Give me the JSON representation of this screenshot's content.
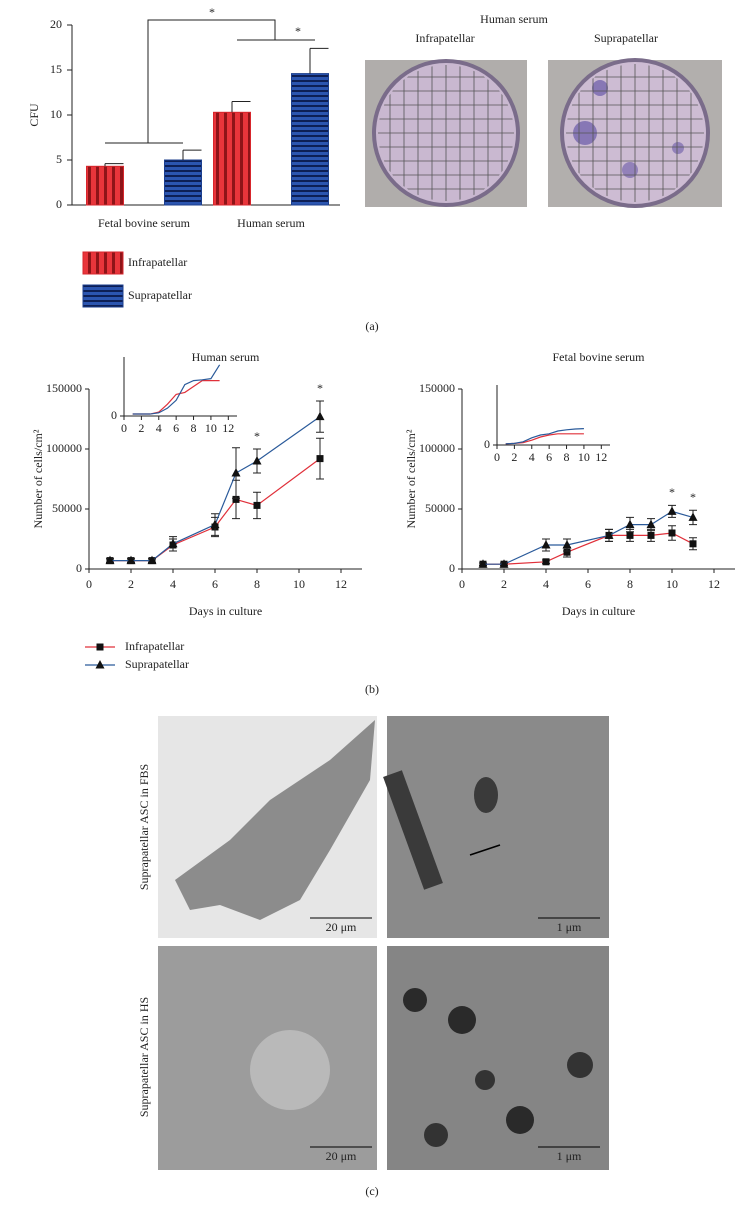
{
  "chart_data": [
    {
      "type": "bar",
      "ylabel": "CFU",
      "categories": [
        "Fetal bovine serum",
        "Human serum"
      ],
      "series": [
        {
          "name": "Infrapatellar",
          "color": "#d7262c",
          "values": [
            4.3,
            10.3
          ],
          "errors": [
            0.3,
            1.2
          ]
        },
        {
          "name": "Suprapatellar",
          "color": "#1c3f8e",
          "values": [
            5.0,
            14.6
          ],
          "errors": [
            1.1,
            2.8
          ]
        }
      ],
      "ylim": [
        0,
        20
      ],
      "yticks": [
        0,
        5,
        10,
        15,
        20
      ],
      "annotations": [
        "*",
        "*"
      ]
    },
    {
      "type": "line",
      "title": "Human serum",
      "xlabel": "Days in culture",
      "ylabel": "Number of cells/cm²",
      "xlim": [
        0,
        13
      ],
      "xticks": [
        0,
        2,
        4,
        6,
        8,
        10,
        12
      ],
      "ylim": [
        0,
        150000
      ],
      "yticks": [
        0,
        50000,
        100000,
        150000
      ],
      "series": [
        {
          "name": "Infrapatellar",
          "color": "#e0303a",
          "marker": "square",
          "x": [
            1,
            2,
            3,
            4,
            6,
            7,
            8,
            11
          ],
          "values": [
            7000,
            7000,
            7000,
            20000,
            35000,
            58000,
            53000,
            92000
          ],
          "errors": [
            1500,
            1500,
            1500,
            5000,
            8000,
            16000,
            11000,
            17000
          ]
        },
        {
          "name": "Suprapatellar",
          "color": "#2a5a9a",
          "marker": "triangle",
          "x": [
            1,
            2,
            3,
            4,
            6,
            7,
            8,
            11
          ],
          "values": [
            7000,
            7000,
            7000,
            21000,
            37000,
            80000,
            90000,
            127000
          ],
          "errors": [
            1500,
            1500,
            1500,
            6000,
            9000,
            21000,
            10000,
            13000
          ]
        }
      ],
      "significance": [
        {
          "text": "*",
          "x": 8
        },
        {
          "text": "*",
          "x": 11
        }
      ]
    },
    {
      "type": "inset",
      "xlim": [
        0,
        13
      ],
      "xticks": [
        0,
        2,
        4,
        6,
        8,
        10,
        12
      ],
      "ylim": [
        0,
        150000
      ],
      "yticks": [
        0
      ],
      "series": [
        {
          "color": "#e0303a",
          "x": [
            1,
            2,
            3,
            4,
            5,
            6,
            7,
            8,
            9,
            10,
            11
          ],
          "values": [
            5000,
            5000,
            5000,
            10000,
            30000,
            55000,
            60000,
            75000,
            90000,
            90000,
            90000
          ]
        },
        {
          "color": "#2a5a9a",
          "x": [
            1,
            2,
            3,
            4,
            5,
            6,
            7,
            8,
            9,
            10,
            11
          ],
          "values": [
            5000,
            5000,
            5000,
            8000,
            20000,
            40000,
            80000,
            90000,
            92000,
            95000,
            130000
          ]
        }
      ]
    },
    {
      "type": "line",
      "title": "Fetal bovine serum",
      "xlabel": "Days in culture",
      "ylabel": "Number of cells/cm²",
      "xlim": [
        0,
        13
      ],
      "xticks": [
        0,
        2,
        4,
        6,
        8,
        10,
        12
      ],
      "ylim": [
        0,
        150000
      ],
      "yticks": [
        0,
        50000,
        100000,
        150000
      ],
      "series": [
        {
          "color": "#e0303a",
          "marker": "square",
          "x": [
            1,
            2,
            4,
            5,
            7,
            8,
            9,
            10,
            11
          ],
          "values": [
            4000,
            4000,
            6000,
            14000,
            28000,
            28000,
            28000,
            30000,
            21000
          ],
          "errors": [
            1000,
            1000,
            1500,
            4000,
            5000,
            5000,
            5000,
            6000,
            5000
          ]
        },
        {
          "color": "#2a5a9a",
          "marker": "triangle",
          "x": [
            1,
            2,
            4,
            5,
            7,
            8,
            9,
            10,
            11
          ],
          "values": [
            4000,
            4000,
            20000,
            20000,
            28000,
            37000,
            37000,
            48000,
            43000
          ],
          "errors": [
            1000,
            1000,
            5000,
            5000,
            5000,
            6000,
            5000,
            5000,
            6000
          ]
        }
      ],
      "significance": [
        {
          "text": "*",
          "x": 10
        },
        {
          "text": "*",
          "x": 11
        }
      ]
    },
    {
      "type": "inset",
      "xlim": [
        0,
        13
      ],
      "xticks": [
        0,
        2,
        4,
        6,
        8,
        10,
        12
      ],
      "ylim": [
        0,
        150000
      ],
      "yticks": [
        0
      ],
      "series": [
        {
          "color": "#e0303a",
          "x": [
            1,
            2,
            3,
            4,
            5,
            6,
            7,
            8,
            9,
            10
          ],
          "values": [
            3000,
            4000,
            6000,
            12000,
            20000,
            25000,
            28000,
            28000,
            28000,
            28000
          ]
        },
        {
          "color": "#2a5a9a",
          "x": [
            1,
            2,
            3,
            4,
            5,
            6,
            7,
            8,
            9,
            10
          ],
          "values": [
            3000,
            4000,
            8000,
            18000,
            25000,
            28000,
            35000,
            38000,
            40000,
            41000
          ]
        }
      ]
    }
  ],
  "figure": {
    "panel_labels": [
      "(a)",
      "(b)",
      "(c)"
    ],
    "plates": {
      "title": "Human serum",
      "labels": [
        "Infrapatellar",
        "Suprapatellar"
      ]
    },
    "micrographs": {
      "row_labels": [
        "Suprapatellar ASC in FBS",
        "Suprapatellar ASC in HS"
      ],
      "scale_bars": [
        "20 μm",
        "1 μm",
        "20 μm",
        "1 μm"
      ]
    }
  }
}
